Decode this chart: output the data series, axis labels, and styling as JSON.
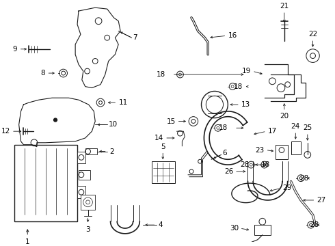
{
  "bg_color": "#ffffff",
  "line_color": "#1a1a1a",
  "fig_width": 4.9,
  "fig_height": 3.6,
  "dpi": 100,
  "label_fs": 7.5,
  "lw": 0.7
}
